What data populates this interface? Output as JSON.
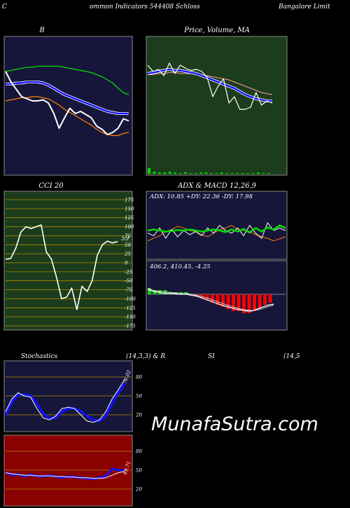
{
  "header": {
    "left_char": "C",
    "title": "ommon Indicators 544408 Schloss",
    "right": "Bangalore Limit"
  },
  "watermark": "MunafaSutra.com",
  "colors": {
    "navy": "#16163a",
    "green_panel": "#1c3d1c",
    "red_panel": "#8b0000",
    "white": "#ffffff",
    "blue": "#1010ff",
    "green": "#00dd00",
    "orange": "#ff7f00",
    "grid": "#b38b00"
  },
  "chart_data": [
    {
      "type": "line",
      "title": "B",
      "description_hidden": false,
      "series": [
        {
          "values": [
            72,
            62,
            55,
            48,
            46,
            44,
            44,
            45,
            42,
            32,
            18,
            28,
            37,
            32,
            34,
            31,
            28,
            20,
            17,
            12,
            14,
            18,
            27,
            25
          ]
        },
        {
          "values": [
            60,
            60,
            61,
            61,
            62,
            62,
            62,
            61,
            59,
            56,
            53,
            50,
            48,
            46,
            44,
            42,
            40,
            38,
            36,
            34,
            33,
            32,
            32,
            32
          ]
        },
        {
          "values": [
            72,
            73,
            74,
            75,
            76,
            76,
            77,
            77,
            77,
            77,
            77,
            76,
            75,
            74,
            73,
            72,
            71,
            69,
            67,
            64,
            61,
            56,
            52,
            50
          ]
        },
        {
          "values": [
            44,
            45,
            46,
            47,
            47,
            48,
            48,
            47,
            46,
            43,
            40,
            36,
            33,
            30,
            27,
            24,
            21,
            17,
            14,
            12,
            11,
            11,
            13,
            14
          ]
        }
      ]
    },
    {
      "type": "line",
      "title": "Price,  Volume, MA",
      "series": [
        {
          "values": [
            78,
            72,
            74,
            68,
            80,
            70,
            78,
            75,
            73,
            74,
            72,
            66,
            48,
            58,
            65,
            42,
            48,
            36,
            36,
            38,
            52,
            40,
            44,
            42
          ]
        },
        {
          "values": [
            70,
            71,
            72,
            73,
            74,
            73,
            73,
            72,
            71,
            70,
            68,
            66,
            64,
            62,
            60,
            58,
            56,
            53,
            50,
            48,
            46,
            45,
            44,
            44
          ]
        },
        {
          "values": [
            69,
            69,
            70,
            70,
            71,
            71,
            70,
            70,
            70,
            69,
            69,
            68,
            67,
            66,
            65,
            64,
            62,
            60,
            58,
            56,
            54,
            52,
            51,
            50
          ]
        }
      ],
      "volume": [
        8,
        3,
        2,
        2,
        3,
        2,
        1,
        2,
        1,
        1,
        2,
        2,
        1,
        1,
        2,
        1,
        1,
        1,
        1,
        1,
        1,
        2,
        1,
        1
      ]
    },
    {
      "type": "line",
      "title": "CCI 20",
      "ylim": [
        -175,
        175
      ],
      "yticks": [
        175,
        150,
        125,
        100,
        75,
        50,
        25,
        0,
        -25,
        -50,
        -75,
        -100,
        -125,
        -150,
        -175
      ],
      "series": [
        {
          "values": [
            10,
            12,
            40,
            85,
            100,
            95,
            100,
            105,
            30,
            10,
            -40,
            -100,
            -95,
            -70,
            -130,
            -65,
            -80,
            -50,
            20,
            50,
            60,
            55,
            59
          ]
        }
      ],
      "last_value_label": "59"
    },
    {
      "type": "line",
      "title": "ADX  & MACD 12,26,9",
      "adx_text": "ADX: 10.85  +DY: 22.36  -DY: 17.98",
      "macd_text": "406.2,  410.45,  -4.25",
      "adx_series": [
        {
          "values": [
            50,
            52,
            50,
            48,
            49,
            51,
            50,
            52,
            50,
            48,
            50,
            52,
            50,
            47,
            52,
            48,
            53,
            46,
            55,
            48,
            56,
            52,
            60,
            55
          ]
        },
        {
          "values": [
            45,
            40,
            55,
            35,
            52,
            38,
            50,
            42,
            48,
            40,
            55,
            45,
            60,
            50,
            45,
            55,
            40,
            60,
            45,
            35,
            65,
            50,
            55,
            50
          ]
        },
        {
          "values": [
            30,
            35,
            40,
            48,
            52,
            58,
            55,
            50,
            48,
            42,
            38,
            45,
            52,
            55,
            60,
            52,
            50,
            48,
            42,
            38,
            35,
            30,
            34,
            38
          ]
        }
      ],
      "macd_series": [
        {
          "values": [
            70,
            66,
            64,
            62,
            62,
            61,
            60,
            60,
            58,
            56,
            52,
            48,
            44,
            40,
            36,
            33,
            30,
            28,
            26,
            26,
            30,
            34,
            38,
            40
          ]
        },
        {
          "values": [
            72,
            68,
            66,
            65,
            64,
            63,
            62,
            62,
            60,
            58,
            55,
            52,
            48,
            44,
            40,
            36,
            33,
            30,
            28,
            27,
            28,
            31,
            35,
            38
          ]
        }
      ],
      "histogram": [
        3,
        2,
        2,
        2,
        1,
        1,
        1,
        1,
        0,
        -1,
        -2,
        -3,
        -4,
        -5,
        -6,
        -7,
        -8,
        -8,
        -9,
        -9,
        -8,
        -7,
        -5,
        -4
      ]
    },
    {
      "type": "line",
      "title": "Stochastics",
      "params": "(14,3,3) & R",
      "yticks": [
        80,
        50,
        20
      ],
      "last_value_label": "76.02",
      "series": [
        {
          "values": [
            25,
            45,
            55,
            50,
            48,
            30,
            15,
            12,
            18,
            30,
            32,
            30,
            20,
            10,
            8,
            12,
            25,
            45,
            60,
            76
          ]
        },
        {
          "values": [
            20,
            40,
            52,
            52,
            50,
            38,
            22,
            14,
            15,
            25,
            30,
            30,
            26,
            18,
            12,
            10,
            18,
            38,
            55,
            70
          ]
        }
      ]
    },
    {
      "type": "line",
      "title": "SI",
      "params": "(14,5",
      "yticks": [
        80,
        50,
        20
      ],
      "last_value_label": "49.71",
      "series": [
        {
          "values": [
            47,
            42,
            44,
            40,
            43,
            41,
            40,
            42,
            40,
            38,
            40,
            39,
            38,
            37,
            36,
            38,
            40,
            52,
            50,
            50
          ]
        },
        {
          "values": [
            46,
            44,
            43,
            42,
            42,
            41,
            41,
            41,
            40,
            40,
            39,
            39,
            38,
            38,
            37,
            37,
            38,
            42,
            46,
            48
          ]
        }
      ]
    }
  ]
}
